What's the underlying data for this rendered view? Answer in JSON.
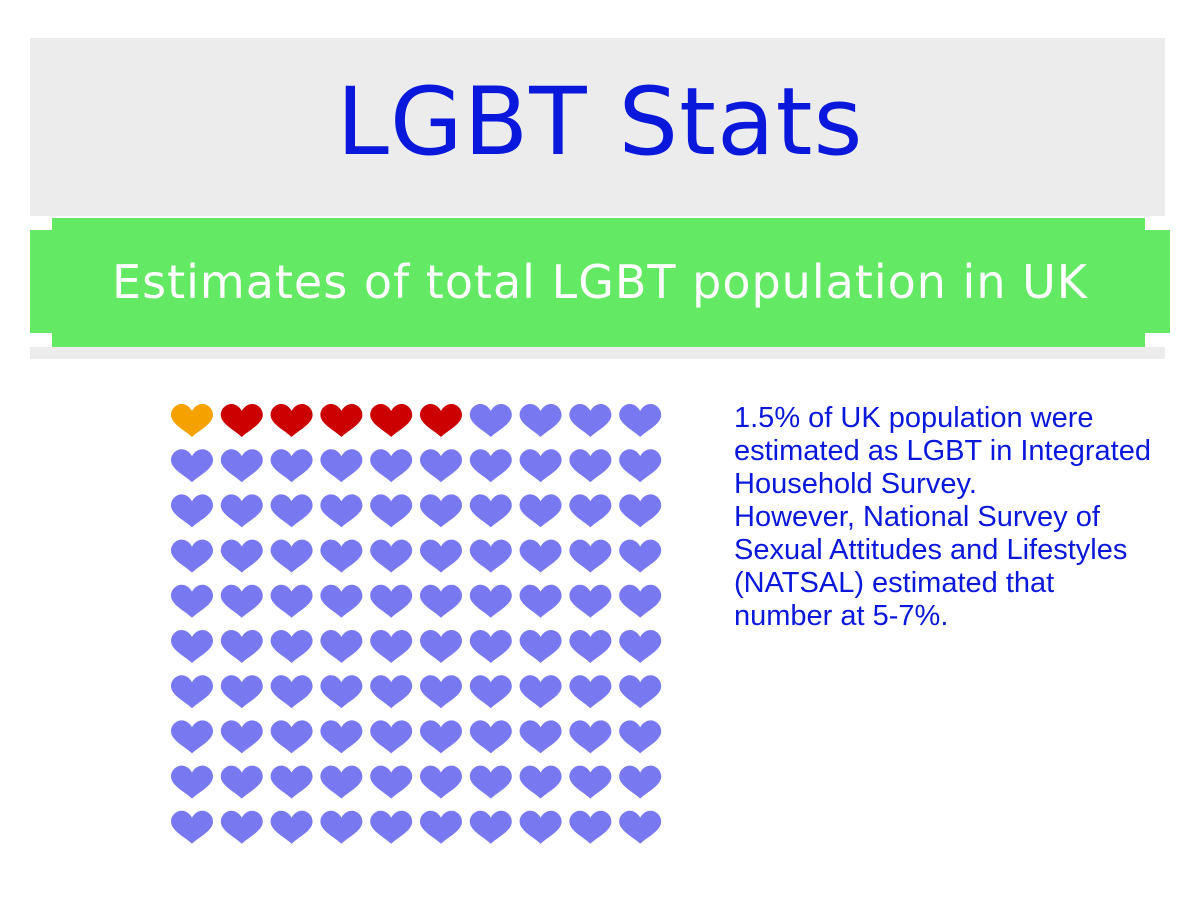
{
  "header": {
    "title": "LGBT Stats",
    "subtitle": "Estimates of total LGBT population in UK"
  },
  "colors": {
    "title_text": "#0a18dc",
    "band_grey": "#ececec",
    "ribbon_green": "#63e963",
    "heart_orange": "#f5a100",
    "heart_red": "#cc0000",
    "heart_purple": "#7878f0",
    "info_text": "#0a18dc"
  },
  "chart_data": {
    "type": "waffle",
    "icon": "heart-icon",
    "rows": 10,
    "columns": 10,
    "total": 100,
    "segments": [
      {
        "count": 1,
        "color": "#f5a100"
      },
      {
        "count": 5,
        "color": "#cc0000"
      },
      {
        "count": 94,
        "color": "#7878f0"
      }
    ]
  },
  "info": {
    "paragraph1": "1.5% of UK population were estimated as LGBT in Integrated Household Survey.",
    "paragraph2": "However, National Survey of Sexual Attitudes and Lifestyles (NATSAL) estimated that number at 5-7%."
  }
}
